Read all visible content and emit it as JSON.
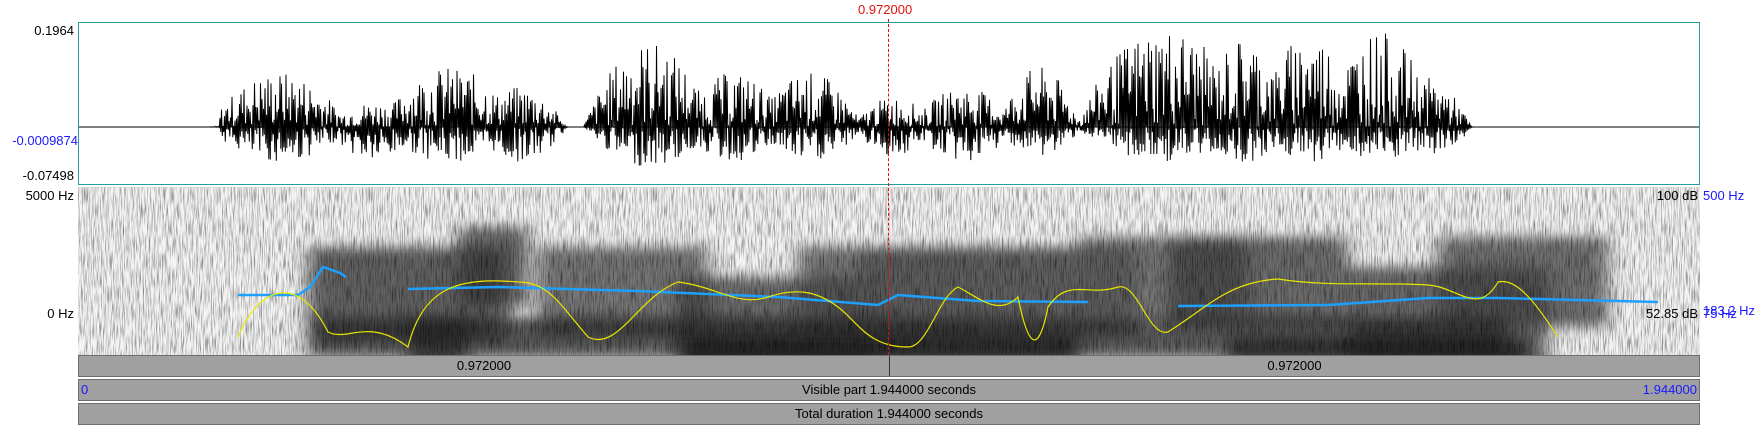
{
  "cursor": {
    "time_label": "0.972000",
    "color": "#e01010"
  },
  "waveform": {
    "y_max_label": "0.1964",
    "y_zero_label": "-0.0009874",
    "y_min_label": "-0.07498",
    "border_color": "#2a9b9b"
  },
  "spectrogram": {
    "freq_top_label": "5000 Hz",
    "freq_bottom_label": "0 Hz",
    "intensity_top_label": "100 dB",
    "intensity_bottom_label": "52.85 dB",
    "pitch_top_label": "500 Hz",
    "pitch_mid_label": "183.2 Hz",
    "pitch_bottom_label": "75 Hz",
    "pitch_color": "#1ea0ff",
    "intensity_color": "#e6e600"
  },
  "time_bars": {
    "left_segment_label": "0.972000",
    "right_segment_label": "0.972000",
    "visible_start_label": "0",
    "visible_part_label": "Visible part 1.944000 seconds",
    "visible_end_label": "1.944000",
    "total_duration_label": "Total duration 1.944000 seconds"
  }
}
